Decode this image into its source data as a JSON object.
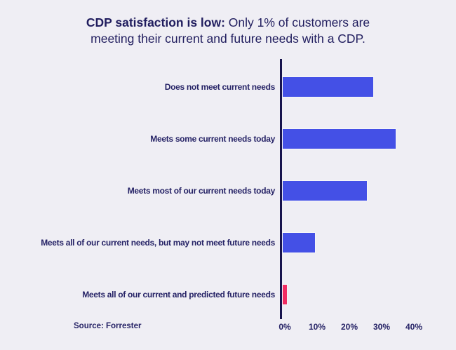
{
  "page": {
    "background": "#EFEEF4"
  },
  "title": {
    "bold": "CDP satisfaction is low:",
    "regular_line1": "Only 1% of customers are",
    "line2": "meeting their current and future needs with a CDP."
  },
  "chart_data": {
    "type": "bar",
    "orientation": "horizontal",
    "title": "CDP satisfaction is low: Only 1% of customers are meeting their current and future needs with a CDP.",
    "categories": [
      "Does not meet current needs",
      "Meets some current needs today",
      "Meets most of our current needs today",
      "Meets all of our current needs, but may not meet future needs",
      "Meets all of our current and predicted future needs"
    ],
    "values": [
      28,
      35,
      26,
      10,
      1
    ],
    "unit": "%",
    "xlim": [
      0,
      40
    ],
    "x_ticks": [
      "0%",
      "10%",
      "20%",
      "30%",
      "40%"
    ],
    "grid": false,
    "legend": "none",
    "bar_color": "#4450E6",
    "highlight_color": "#F12C63",
    "highlight_index": 4,
    "axis_color": "#17134D",
    "text_color": "#262366"
  },
  "source": {
    "label": "Source: Forrester"
  }
}
